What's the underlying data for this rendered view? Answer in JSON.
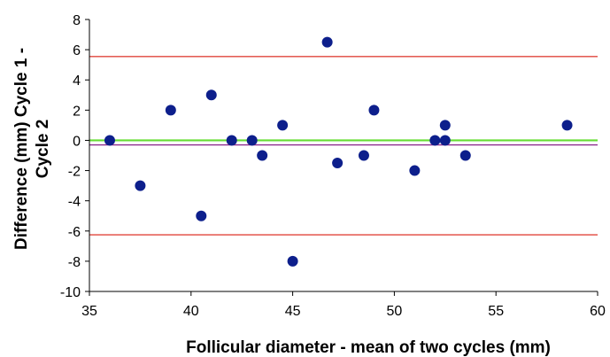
{
  "chart_data": {
    "type": "scatter",
    "title": "",
    "xlabel": "Follicular diameter - mean  of two cycles (mm)",
    "ylabel_lines": [
      "Difference (mm) Cycle 1 -",
      "Cycle 2"
    ],
    "xlim": [
      35,
      60
    ],
    "ylim": [
      -10,
      8
    ],
    "x_ticks": [
      "35",
      "40",
      "45",
      "50",
      "55",
      "60"
    ],
    "y_ticks": [
      "8",
      "6",
      "4",
      "2",
      "0",
      "-2",
      "-4",
      "-6",
      "-8",
      "-10"
    ],
    "points": [
      {
        "x": 36.0,
        "y": 0
      },
      {
        "x": 37.5,
        "y": -3
      },
      {
        "x": 39.0,
        "y": 2
      },
      {
        "x": 40.5,
        "y": -5
      },
      {
        "x": 41.0,
        "y": 3
      },
      {
        "x": 42.0,
        "y": 0
      },
      {
        "x": 43.0,
        "y": 0
      },
      {
        "x": 43.5,
        "y": -1
      },
      {
        "x": 44.5,
        "y": 1
      },
      {
        "x": 45.0,
        "y": -8
      },
      {
        "x": 46.7,
        "y": 6.5
      },
      {
        "x": 47.2,
        "y": -1.5
      },
      {
        "x": 48.5,
        "y": -1
      },
      {
        "x": 49.0,
        "y": 2
      },
      {
        "x": 51.0,
        "y": -2
      },
      {
        "x": 52.0,
        "y": 0
      },
      {
        "x": 52.5,
        "y": 0
      },
      {
        "x": 52.5,
        "y": 1
      },
      {
        "x": 53.5,
        "y": -1
      },
      {
        "x": 58.5,
        "y": 1
      }
    ],
    "reference_lines": [
      {
        "y": 5.55,
        "color": "#e0463c"
      },
      {
        "y": 0,
        "color": "#66dd33"
      },
      {
        "y": -0.3,
        "color": "#8e2c8e"
      },
      {
        "y": -6.25,
        "color": "#e0463c"
      }
    ],
    "point_color": "#0d1f8c"
  }
}
